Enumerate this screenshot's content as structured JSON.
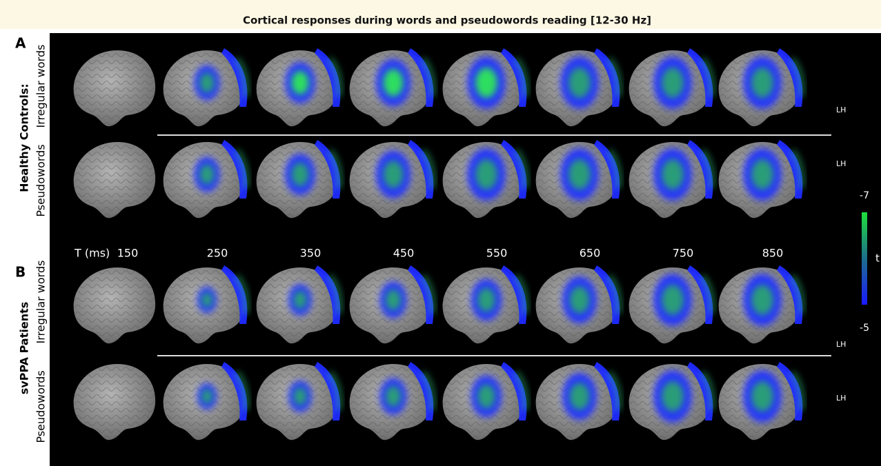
{
  "title": "Cortical responses during words and pseudowords reading [12-30 Hz]",
  "panels": [
    {
      "letter": "A",
      "group": "Healthy Controls:",
      "rows": [
        "Irregular words",
        "Pseudowords"
      ]
    },
    {
      "letter": "B",
      "group": "svPPA Patients",
      "rows": [
        "Irregular words",
        "Pseudowords"
      ]
    }
  ],
  "time_axis": {
    "label": "T (ms)",
    "values": [
      150,
      250,
      350,
      450,
      550,
      650,
      750,
      850
    ]
  },
  "hemisphere_labels": [
    "LH",
    "LH",
    "LH",
    "LH"
  ],
  "colorbar": {
    "top_label": "-7",
    "bottom_label": "-5",
    "label": "t"
  }
}
